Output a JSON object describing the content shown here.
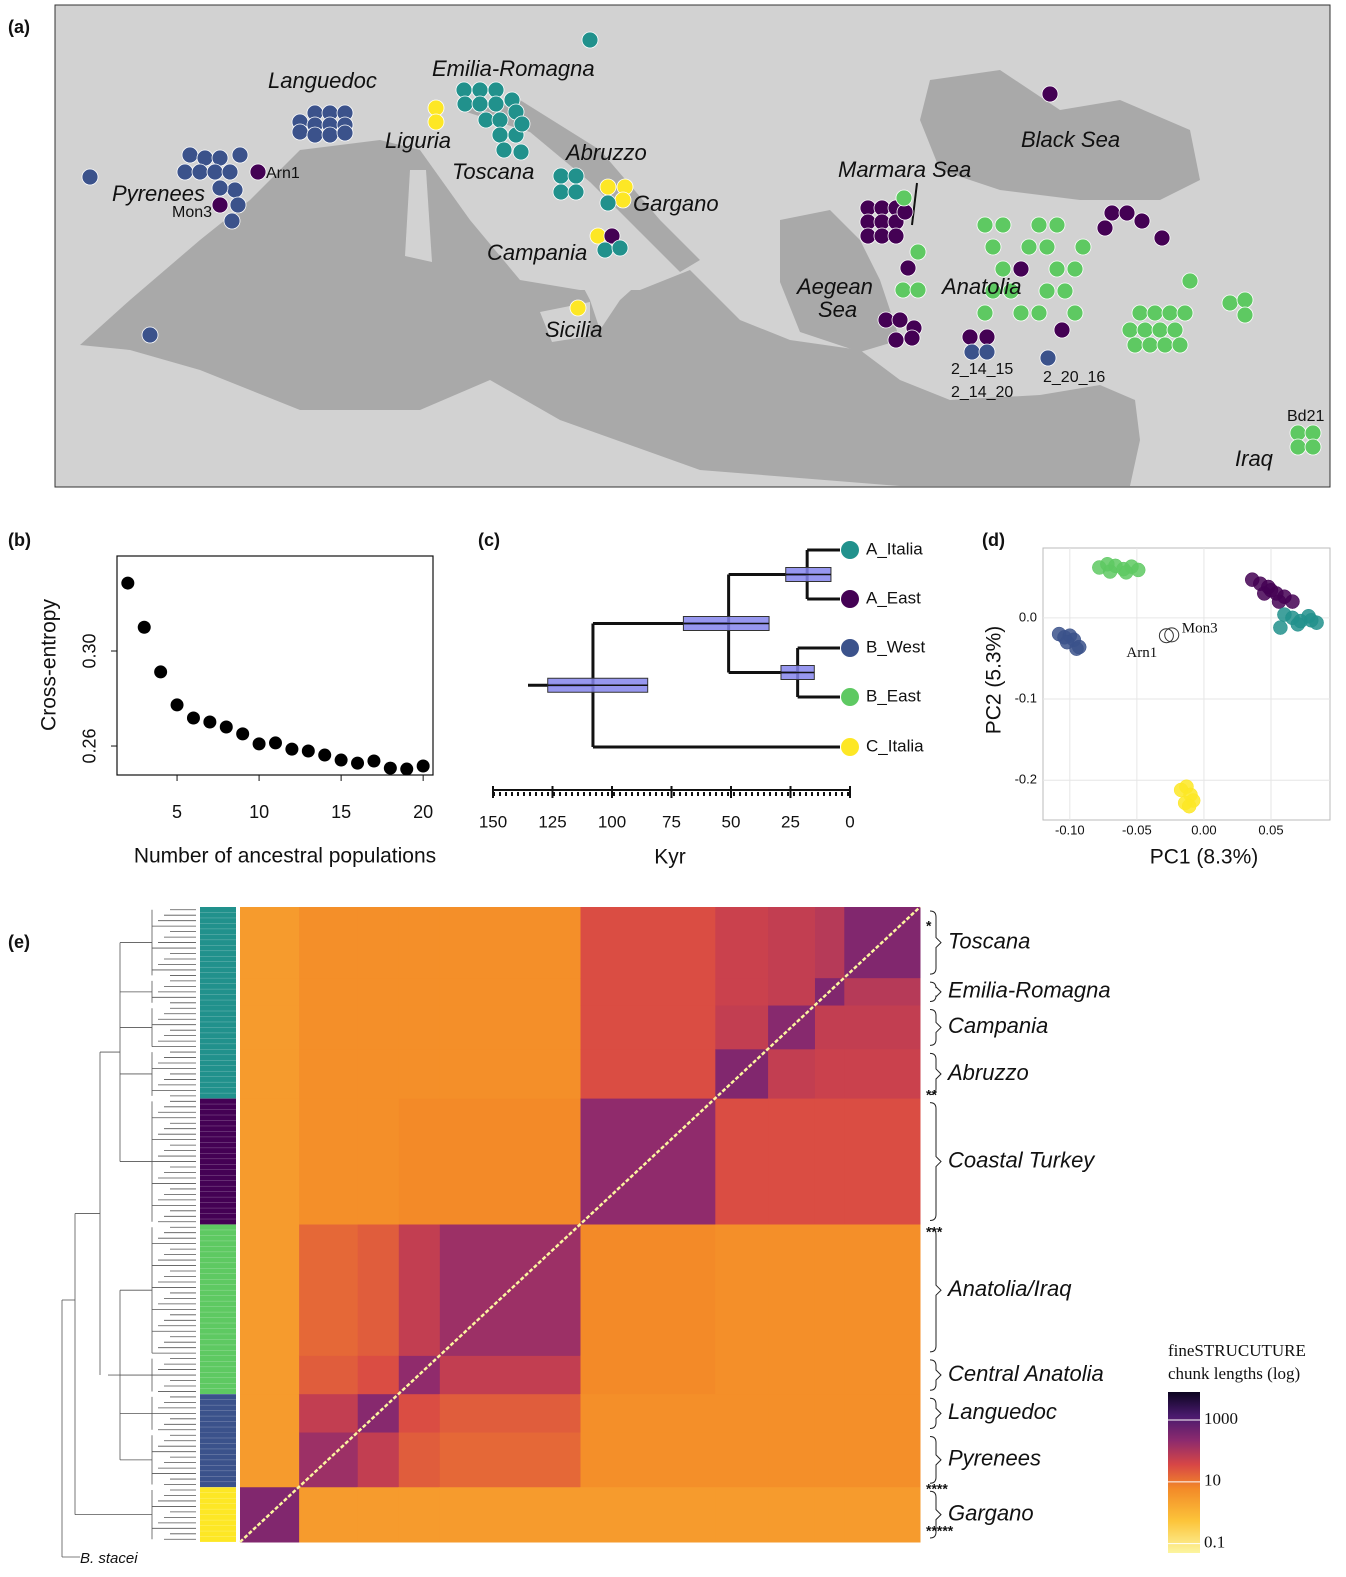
{
  "panel_labels": [
    "(a)",
    "(b)",
    "(c)",
    "(d)",
    "(e)"
  ],
  "map": {
    "labels": [
      "Languedoc",
      "Emilia-Romagna",
      "Liguria",
      "Toscana",
      "Abruzzo",
      "Pyrenees",
      "Arn1",
      "Mon3",
      "Gargano",
      "Campania",
      "Sicilia",
      "Black Sea",
      "Marmara Sea",
      "Aegean",
      "Sea",
      "Anatolia",
      "2_14_15",
      "2_14_20",
      "2_20_16",
      "Bd21",
      "Iraq"
    ]
  },
  "chart_data": [
    {
      "type": "scatter",
      "xlabel": "Number of ancestral populations",
      "ylabel": "Cross-entropy",
      "x": [
        2,
        3,
        4,
        5,
        6,
        7,
        8,
        9,
        10,
        11,
        12,
        13,
        14,
        15,
        16,
        17,
        18,
        19,
        20
      ],
      "values": [
        0.3286,
        0.31,
        0.2912,
        0.2773,
        0.2718,
        0.2701,
        0.268,
        0.2651,
        0.2609,
        0.2613,
        0.2587,
        0.2579,
        0.2562,
        0.2541,
        0.2528,
        0.2537,
        0.2507,
        0.2503,
        0.2516
      ],
      "color": "#000000",
      "xlim": [
        1.34,
        20.6
      ],
      "ylim": [
        0.2478,
        0.34
      ],
      "xticks": [
        5,
        10,
        15,
        20
      ],
      "yticks": [
        0.26,
        {
          "value": 0.3,
          "label": "0.30"
        }
      ]
    },
    {
      "type": "tree",
      "xlabel": "Kyr",
      "xlim": [
        150,
        0
      ],
      "xticks": [
        150,
        125,
        100,
        75,
        50,
        25,
        0
      ],
      "leaves": [
        "A_Italia",
        "A_East",
        "B_West",
        "B_East",
        "C_Italia"
      ],
      "leaf_colors": [
        "#21918c",
        "#440154",
        "#3b528b",
        "#5ec962",
        "#fde725"
      ],
      "nodes": [
        {
          "age": 18,
          "hpd": [
            8,
            27
          ]
        },
        {
          "age": 22,
          "hpd": [
            15,
            29
          ]
        },
        {
          "age": 51,
          "hpd": [
            34,
            70
          ]
        },
        {
          "age": 108,
          "hpd": [
            85,
            127
          ]
        }
      ],
      "bar_color": "#8585ec"
    },
    {
      "type": "scatter",
      "xlabel": "PC1 (8.3%)",
      "ylabel": "PC2 (5.3%)",
      "grid": true,
      "xlim": [
        -0.12,
        0.094
      ],
      "ylim": [
        -0.249,
        0.086
      ],
      "xticks": [
        {
          "value": -0.1,
          "label": "-0.10"
        },
        {
          "value": -0.05,
          "label": "-0.05"
        },
        {
          "value": 0,
          "label": "0.00"
        },
        {
          "value": 0.05,
          "label": "0.05"
        }
      ],
      "yticks": [
        {
          "value": 0,
          "label": "0.0"
        },
        {
          "value": -0.1,
          "label": "-0.1"
        },
        {
          "value": -0.2,
          "label": "-0.2"
        }
      ],
      "series": [
        {
          "color": "#5ec962",
          "x": [
            -0.078,
            -0.072,
            -0.066,
            -0.06,
            -0.054,
            -0.049,
            -0.07,
            -0.058
          ],
          "values": [
            0.062,
            0.066,
            0.064,
            0.06,
            0.063,
            0.059,
            0.057,
            0.056
          ]
        },
        {
          "color": "#3b528b",
          "x": [
            -0.108,
            -0.104,
            -0.1,
            -0.097,
            -0.093,
            -0.102,
            -0.095
          ],
          "values": [
            -0.02,
            -0.024,
            -0.022,
            -0.027,
            -0.036,
            -0.03,
            -0.038
          ]
        },
        {
          "color": "#440154",
          "x": [
            0.036,
            0.042,
            0.048,
            0.054,
            0.06,
            0.066,
            0.045,
            0.056,
            0.05
          ],
          "values": [
            0.047,
            0.042,
            0.038,
            0.03,
            0.026,
            0.02,
            0.03,
            0.02,
            0.034
          ]
        },
        {
          "color": "#21918c",
          "x": [
            0.06,
            0.066,
            0.072,
            0.078,
            0.084,
            0.07,
            0.08,
            0.057
          ],
          "values": [
            0.004,
            0.0,
            -0.004,
            0.002,
            -0.006,
            -0.008,
            -0.003,
            -0.012
          ]
        },
        {
          "color": "#fde725",
          "x": [
            -0.017,
            -0.013,
            -0.01,
            -0.008,
            -0.014,
            -0.011
          ],
          "values": [
            -0.212,
            -0.208,
            -0.218,
            -0.225,
            -0.228,
            -0.232
          ]
        },
        {
          "color": "#333333",
          "fill": "none",
          "x": [
            -0.028,
            -0.024
          ],
          "values": [
            -0.022,
            -0.021
          ],
          "labels": [
            "Arn1",
            "Mon3"
          ]
        }
      ]
    },
    {
      "type": "heatmap",
      "groups": [
        "Toscana",
        "Emilia-Romagna",
        "Campania",
        "Abruzzo",
        "Coastal Turkey",
        "Anatolia/Iraq",
        "Central Anatolia",
        "Languedoc",
        "Pyrenees",
        "Gargano"
      ],
      "group_sizes": [
        13,
        5,
        8,
        9,
        23,
        24,
        7,
        7,
        10,
        10
      ],
      "group_colors": [
        "#21918c",
        "#21918c",
        "#21918c",
        "#21918c",
        "#440154",
        "#5ec962",
        "#5ec962",
        "#3b528b",
        "#3b528b",
        "#fde725"
      ],
      "values": [
        [
          300,
          80,
          60,
          50,
          30,
          5,
          5,
          5,
          5,
          3
        ],
        [
          80,
          300,
          60,
          50,
          30,
          5,
          5,
          5,
          5,
          3
        ],
        [
          60,
          60,
          250,
          60,
          30,
          5,
          5,
          5,
          5,
          3
        ],
        [
          50,
          50,
          60,
          300,
          30,
          5,
          5,
          5,
          5,
          3
        ],
        [
          30,
          30,
          30,
          30,
          200,
          6,
          6,
          5,
          5,
          3
        ],
        [
          5,
          5,
          5,
          5,
          6,
          150,
          60,
          20,
          15,
          3
        ],
        [
          5,
          5,
          5,
          5,
          6,
          60,
          200,
          30,
          20,
          3
        ],
        [
          5,
          5,
          5,
          5,
          5,
          20,
          30,
          250,
          60,
          3
        ],
        [
          5,
          5,
          5,
          5,
          5,
          15,
          20,
          60,
          150,
          3
        ],
        [
          3,
          3,
          3,
          3,
          3,
          3,
          3,
          3,
          3,
          300
        ]
      ],
      "cluster_marks": [
        "*",
        "**",
        "***",
        "****",
        "*****"
      ],
      "outgroup": "B. stacei",
      "colorbar_title": [
        "fineSTRUCUTURE",
        "chunk lengths (log)"
      ],
      "log_scale": true,
      "clim": [
        0.05,
        8000
      ],
      "cticks": [
        0.1,
        10,
        1000
      ]
    }
  ]
}
